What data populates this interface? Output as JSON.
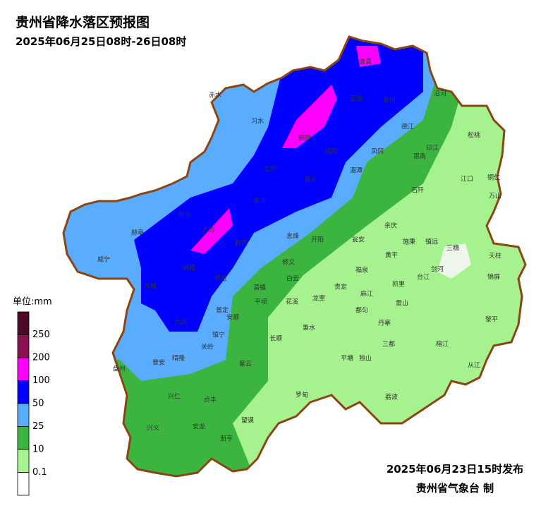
{
  "header": {
    "title": "贵州省降水落区预报图",
    "subtitle": "2025年06月25日08时-26日08时"
  },
  "legend": {
    "unit": "单位:mm",
    "labels": [
      250,
      200,
      100,
      50,
      25,
      10,
      0.1
    ],
    "colors": [
      "#4d0a26",
      "#8b1050",
      "#ff00ff",
      "#0000ff",
      "#5aacff",
      "#3cb440",
      "#a6f28f",
      "#ffffff"
    ]
  },
  "places": [
    "赤水",
    "习水",
    "桐梓",
    "道真",
    "正安",
    "务川",
    "沿河",
    "德江",
    "松桃",
    "凤冈",
    "印江",
    "思南",
    "绥阳",
    "湄潭",
    "江口",
    "铜仁",
    "万山",
    "石阡",
    "仁怀",
    "遵义",
    "金沙",
    "毕节",
    "赫章",
    "大方",
    "黔西",
    "息烽",
    "开阳",
    "余庆",
    "施秉",
    "镇远",
    "三穗",
    "天柱",
    "锦屏",
    "黄平",
    "瓮安",
    "威宁",
    "纳雍",
    "织金",
    "修文",
    "白云",
    "福泉",
    "台江",
    "剑河",
    "凯里",
    "清镇",
    "贵定",
    "龙里",
    "麻江",
    "雷山",
    "黎平",
    "水城",
    "平坝",
    "花溪",
    "都匀",
    "丹寨",
    "普定",
    "安顺",
    "六枝",
    "镇宁",
    "长顺",
    "惠水",
    "三都",
    "榕江",
    "从江",
    "盘州",
    "普安",
    "晴隆",
    "关岭",
    "紫云",
    "平塘",
    "独山",
    "荔波",
    "罗甸",
    "兴仁",
    "贞丰",
    "兴义",
    "安龙",
    "望谟",
    "册亨"
  ],
  "footer": {
    "issued": "2025年06月23日15时发布",
    "agency": "贵州省气象台 制"
  }
}
